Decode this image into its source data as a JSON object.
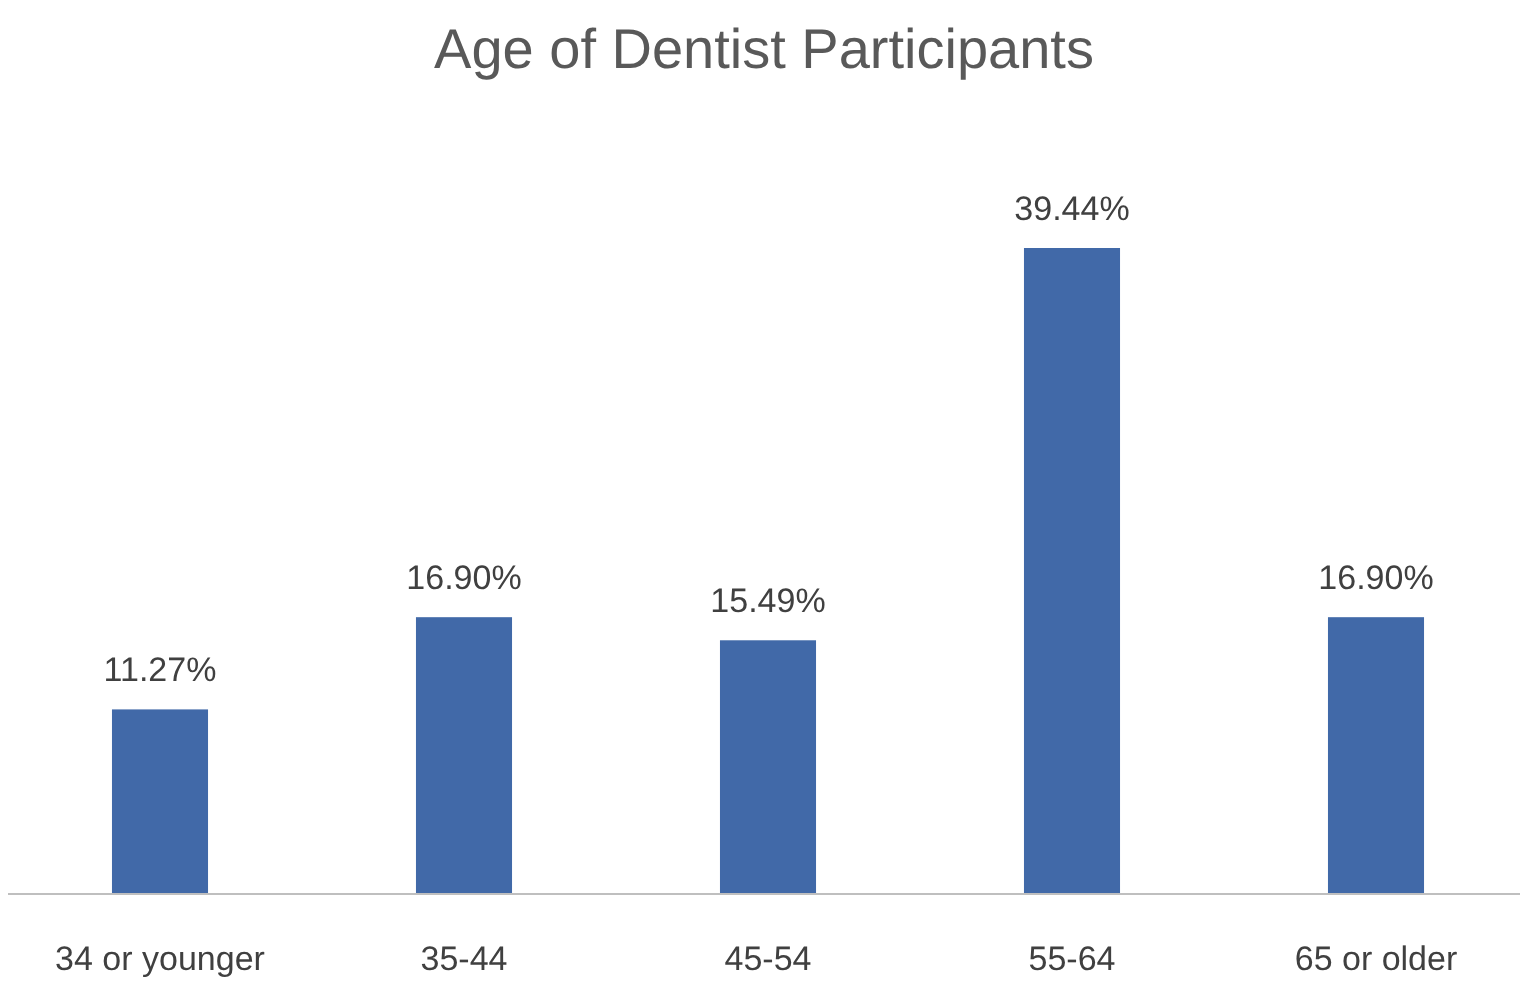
{
  "chart_data": {
    "type": "bar",
    "title": "Age of Dentist Participants",
    "categories": [
      "34 or younger",
      "35-44",
      "45-54",
      "55-64",
      "65 or older"
    ],
    "values": [
      11.27,
      16.9,
      15.49,
      39.44,
      16.9
    ],
    "value_labels": [
      "11.27%",
      "16.90%",
      "15.49%",
      "39.44%",
      "16.90%"
    ],
    "color": "#4169a8"
  }
}
